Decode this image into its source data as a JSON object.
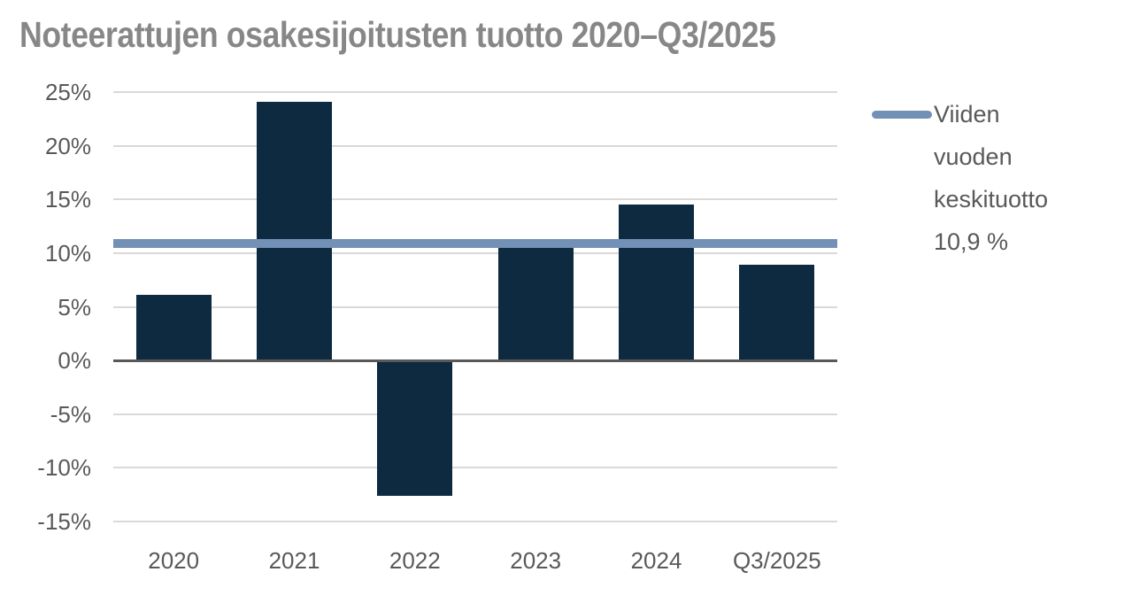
{
  "title": "Noteerattujen osakesijoitusten tuotto 2020–Q3/2025",
  "legend": {
    "label": "Viiden\nvuoden\nkeskituotto\n10,9 %"
  },
  "colors": {
    "background": "#ffffff",
    "bar": "#0d2a40",
    "average_line": "#7391b7",
    "title_text": "#878787",
    "tick_text": "#595959",
    "gridline": "#d9d9d9",
    "zero_axis": "#595959"
  },
  "chart_data": {
    "type": "bar",
    "title": "Noteerattujen osakesijoitusten tuotto 2020–Q3/2025",
    "categories": [
      "2020",
      "2021",
      "2022",
      "2023",
      "2024",
      "Q3/2025"
    ],
    "values": [
      6.1,
      24.1,
      -12.6,
      11.1,
      14.5,
      8.9
    ],
    "xlabel": "",
    "ylabel": "",
    "ylim": [
      -15,
      25
    ],
    "y_ticks": [
      25,
      20,
      15,
      10,
      5,
      0,
      -5,
      -10,
      -15
    ],
    "y_tick_labels": [
      "25%",
      "20%",
      "15%",
      "10%",
      "5%",
      "0%",
      "-5%",
      "-10%",
      "-15%"
    ],
    "grid": true,
    "legend_position": "right",
    "average_line": {
      "value": 10.9,
      "label": "Viiden vuoden keskituotto 10,9 %"
    }
  }
}
